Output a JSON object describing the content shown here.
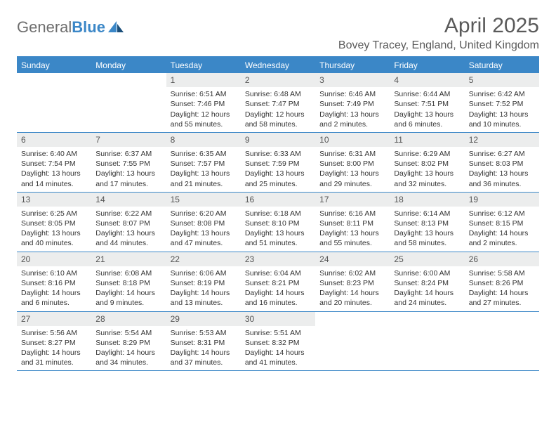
{
  "logo": {
    "text1": "General",
    "text2": "Blue"
  },
  "title": "April 2025",
  "location": "Bovey Tracey, England, United Kingdom",
  "colors": {
    "accent": "#3b87c7",
    "header_text": "#ffffff",
    "daynum_bg": "#eceded",
    "body_text": "#333333",
    "title_text": "#5a5a5a"
  },
  "day_names": [
    "Sunday",
    "Monday",
    "Tuesday",
    "Wednesday",
    "Thursday",
    "Friday",
    "Saturday"
  ],
  "weeks": [
    [
      null,
      null,
      {
        "n": "1",
        "sr": "Sunrise: 6:51 AM",
        "ss": "Sunset: 7:46 PM",
        "dl1": "Daylight: 12 hours",
        "dl2": "and 55 minutes."
      },
      {
        "n": "2",
        "sr": "Sunrise: 6:48 AM",
        "ss": "Sunset: 7:47 PM",
        "dl1": "Daylight: 12 hours",
        "dl2": "and 58 minutes."
      },
      {
        "n": "3",
        "sr": "Sunrise: 6:46 AM",
        "ss": "Sunset: 7:49 PM",
        "dl1": "Daylight: 13 hours",
        "dl2": "and 2 minutes."
      },
      {
        "n": "4",
        "sr": "Sunrise: 6:44 AM",
        "ss": "Sunset: 7:51 PM",
        "dl1": "Daylight: 13 hours",
        "dl2": "and 6 minutes."
      },
      {
        "n": "5",
        "sr": "Sunrise: 6:42 AM",
        "ss": "Sunset: 7:52 PM",
        "dl1": "Daylight: 13 hours",
        "dl2": "and 10 minutes."
      }
    ],
    [
      {
        "n": "6",
        "sr": "Sunrise: 6:40 AM",
        "ss": "Sunset: 7:54 PM",
        "dl1": "Daylight: 13 hours",
        "dl2": "and 14 minutes."
      },
      {
        "n": "7",
        "sr": "Sunrise: 6:37 AM",
        "ss": "Sunset: 7:55 PM",
        "dl1": "Daylight: 13 hours",
        "dl2": "and 17 minutes."
      },
      {
        "n": "8",
        "sr": "Sunrise: 6:35 AM",
        "ss": "Sunset: 7:57 PM",
        "dl1": "Daylight: 13 hours",
        "dl2": "and 21 minutes."
      },
      {
        "n": "9",
        "sr": "Sunrise: 6:33 AM",
        "ss": "Sunset: 7:59 PM",
        "dl1": "Daylight: 13 hours",
        "dl2": "and 25 minutes."
      },
      {
        "n": "10",
        "sr": "Sunrise: 6:31 AM",
        "ss": "Sunset: 8:00 PM",
        "dl1": "Daylight: 13 hours",
        "dl2": "and 29 minutes."
      },
      {
        "n": "11",
        "sr": "Sunrise: 6:29 AM",
        "ss": "Sunset: 8:02 PM",
        "dl1": "Daylight: 13 hours",
        "dl2": "and 32 minutes."
      },
      {
        "n": "12",
        "sr": "Sunrise: 6:27 AM",
        "ss": "Sunset: 8:03 PM",
        "dl1": "Daylight: 13 hours",
        "dl2": "and 36 minutes."
      }
    ],
    [
      {
        "n": "13",
        "sr": "Sunrise: 6:25 AM",
        "ss": "Sunset: 8:05 PM",
        "dl1": "Daylight: 13 hours",
        "dl2": "and 40 minutes."
      },
      {
        "n": "14",
        "sr": "Sunrise: 6:22 AM",
        "ss": "Sunset: 8:07 PM",
        "dl1": "Daylight: 13 hours",
        "dl2": "and 44 minutes."
      },
      {
        "n": "15",
        "sr": "Sunrise: 6:20 AM",
        "ss": "Sunset: 8:08 PM",
        "dl1": "Daylight: 13 hours",
        "dl2": "and 47 minutes."
      },
      {
        "n": "16",
        "sr": "Sunrise: 6:18 AM",
        "ss": "Sunset: 8:10 PM",
        "dl1": "Daylight: 13 hours",
        "dl2": "and 51 minutes."
      },
      {
        "n": "17",
        "sr": "Sunrise: 6:16 AM",
        "ss": "Sunset: 8:11 PM",
        "dl1": "Daylight: 13 hours",
        "dl2": "and 55 minutes."
      },
      {
        "n": "18",
        "sr": "Sunrise: 6:14 AM",
        "ss": "Sunset: 8:13 PM",
        "dl1": "Daylight: 13 hours",
        "dl2": "and 58 minutes."
      },
      {
        "n": "19",
        "sr": "Sunrise: 6:12 AM",
        "ss": "Sunset: 8:15 PM",
        "dl1": "Daylight: 14 hours",
        "dl2": "and 2 minutes."
      }
    ],
    [
      {
        "n": "20",
        "sr": "Sunrise: 6:10 AM",
        "ss": "Sunset: 8:16 PM",
        "dl1": "Daylight: 14 hours",
        "dl2": "and 6 minutes."
      },
      {
        "n": "21",
        "sr": "Sunrise: 6:08 AM",
        "ss": "Sunset: 8:18 PM",
        "dl1": "Daylight: 14 hours",
        "dl2": "and 9 minutes."
      },
      {
        "n": "22",
        "sr": "Sunrise: 6:06 AM",
        "ss": "Sunset: 8:19 PM",
        "dl1": "Daylight: 14 hours",
        "dl2": "and 13 minutes."
      },
      {
        "n": "23",
        "sr": "Sunrise: 6:04 AM",
        "ss": "Sunset: 8:21 PM",
        "dl1": "Daylight: 14 hours",
        "dl2": "and 16 minutes."
      },
      {
        "n": "24",
        "sr": "Sunrise: 6:02 AM",
        "ss": "Sunset: 8:23 PM",
        "dl1": "Daylight: 14 hours",
        "dl2": "and 20 minutes."
      },
      {
        "n": "25",
        "sr": "Sunrise: 6:00 AM",
        "ss": "Sunset: 8:24 PM",
        "dl1": "Daylight: 14 hours",
        "dl2": "and 24 minutes."
      },
      {
        "n": "26",
        "sr": "Sunrise: 5:58 AM",
        "ss": "Sunset: 8:26 PM",
        "dl1": "Daylight: 14 hours",
        "dl2": "and 27 minutes."
      }
    ],
    [
      {
        "n": "27",
        "sr": "Sunrise: 5:56 AM",
        "ss": "Sunset: 8:27 PM",
        "dl1": "Daylight: 14 hours",
        "dl2": "and 31 minutes."
      },
      {
        "n": "28",
        "sr": "Sunrise: 5:54 AM",
        "ss": "Sunset: 8:29 PM",
        "dl1": "Daylight: 14 hours",
        "dl2": "and 34 minutes."
      },
      {
        "n": "29",
        "sr": "Sunrise: 5:53 AM",
        "ss": "Sunset: 8:31 PM",
        "dl1": "Daylight: 14 hours",
        "dl2": "and 37 minutes."
      },
      {
        "n": "30",
        "sr": "Sunrise: 5:51 AM",
        "ss": "Sunset: 8:32 PM",
        "dl1": "Daylight: 14 hours",
        "dl2": "and 41 minutes."
      },
      null,
      null,
      null
    ]
  ]
}
